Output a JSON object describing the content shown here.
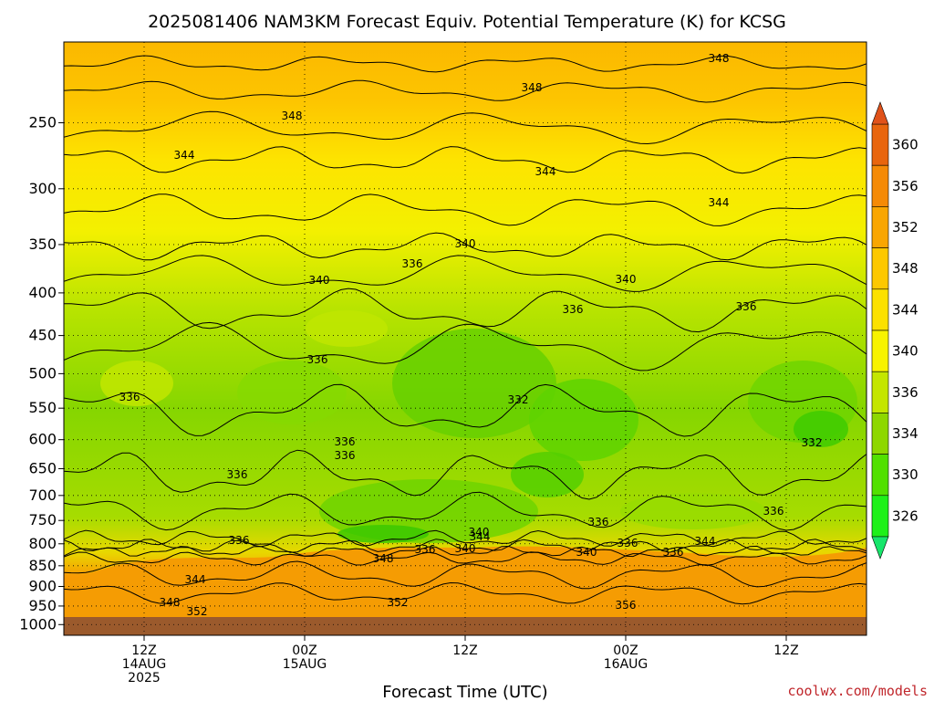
{
  "chart_data": {
    "type": "heatmap",
    "title": "2025081406 NAM3KM Forecast Equiv. Potential Temperature (K) for KCSG",
    "xlabel": "Forecast Time (UTC)",
    "ylabel": "",
    "y_scale": "log",
    "y_reversed": true,
    "y_ticks": [
      250,
      300,
      350,
      400,
      450,
      500,
      550,
      600,
      650,
      700,
      750,
      800,
      850,
      900,
      950,
      1000
    ],
    "ylim": [
      1030,
      200
    ],
    "x_range_hours_utc": [
      "2025-08-14T06Z",
      "2025-08-16T18Z"
    ],
    "x_ticks": [
      {
        "line1": "12Z",
        "line2": "14AUG",
        "line3": "2025"
      },
      {
        "line1": "00Z",
        "line2": "15AUG",
        "line3": ""
      },
      {
        "line1": "12Z",
        "line2": "",
        "line3": ""
      },
      {
        "line1": "00Z",
        "line2": "16AUG",
        "line3": ""
      },
      {
        "line1": "12Z",
        "line2": "",
        "line3": ""
      }
    ],
    "x_tick_times": [
      "2025-08-14T12Z",
      "2025-08-15T00Z",
      "2025-08-15T12Z",
      "2025-08-16T00Z",
      "2025-08-16T12Z"
    ],
    "grid": true,
    "colorbar": {
      "labels": [
        "360",
        "356",
        "352",
        "348",
        "344",
        "340",
        "336",
        "334",
        "330",
        "326"
      ],
      "colors": [
        "#e8650d",
        "#f58a06",
        "#f9a602",
        "#fdc800",
        "#fce100",
        "#f8f300",
        "#c4e600",
        "#8ed700",
        "#52e000",
        "#1ef019"
      ],
      "top_arrow_color": "#e0521a",
      "bottom_arrow_color": "#17e66b"
    },
    "contour_interval_k": 2,
    "contour_labels_shown": [
      "348",
      "348",
      "348",
      "344",
      "344",
      "344",
      "340",
      "340",
      "340",
      "336",
      "336",
      "336",
      "336",
      "336",
      "336",
      "336",
      "336",
      "336",
      "336",
      "332",
      "332",
      "336",
      "336",
      "344",
      "340",
      "336",
      "340",
      "344",
      "336",
      "340",
      "344",
      "348",
      "352",
      "348",
      "352",
      "356"
    ],
    "surface_below_ground_color": "#9b5a2c",
    "credit": "coolwx.com/models"
  }
}
